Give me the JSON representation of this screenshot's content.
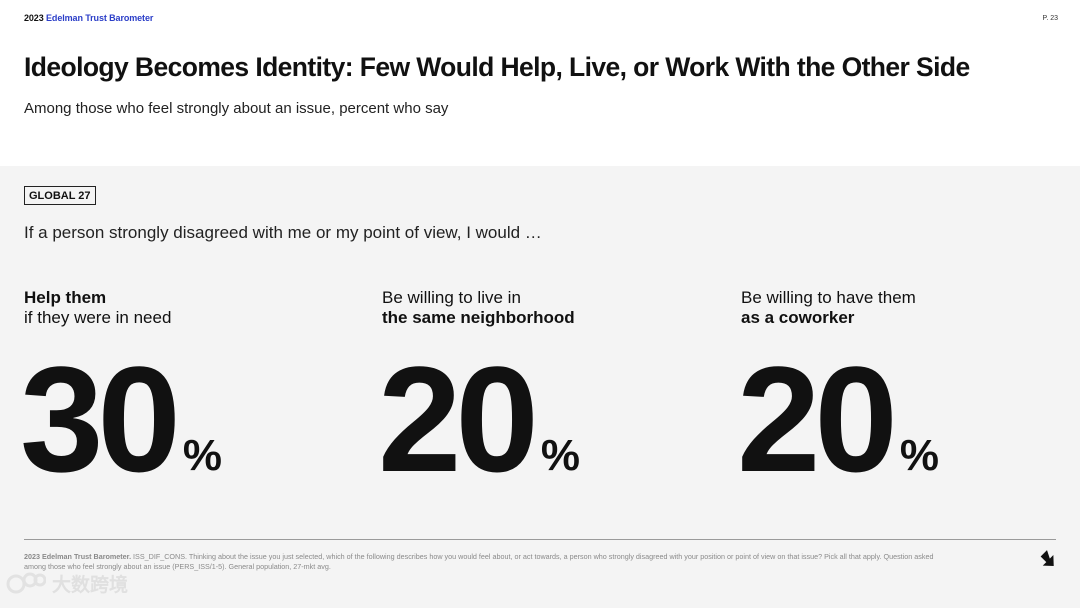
{
  "header": {
    "brand_year": "2023",
    "brand_name": "Edelman Trust Barometer",
    "page_number": "P. 23",
    "title": "Ideology Becomes Identity: Few Would Help, Live, or Work With the Other Side",
    "subtitle": "Among those who feel strongly about an issue, percent who say"
  },
  "panel": {
    "tag": "GLOBAL 27",
    "prompt": "If a person strongly disagreed with me or my point of view, I would …",
    "stats": [
      {
        "line1": "Help them",
        "line2": "if they were in need",
        "bold_line": 1,
        "value": "30",
        "unit": "%"
      },
      {
        "line1": "Be willing to live in",
        "line2": "the same neighborhood",
        "bold_line": 2,
        "value": "20",
        "unit": "%"
      },
      {
        "line1": "Be willing to have them",
        "line2": "as a coworker",
        "bold_line": 2,
        "value": "20",
        "unit": "%"
      }
    ]
  },
  "footer": {
    "note_bold": "2023 Edelman Trust Barometer.",
    "note_text": " ISS_DIF_CONS. Thinking about the issue you just selected, which of the following describes how you would feel about, or act towards, a person who strongly disagreed with your position or point of view on that issue? Pick all that apply. Question asked among those who feel strongly about an issue (PERS_ISS/1-5). General population, 27-mkt avg.",
    "next_icon": "arrow-down-right-icon"
  },
  "watermark": {
    "text": "大数跨境"
  }
}
